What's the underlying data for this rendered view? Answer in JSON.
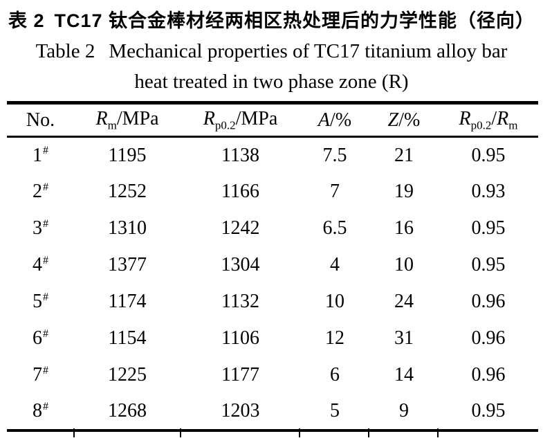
{
  "page": {
    "title_zh": {
      "label": "表 2",
      "text": "TC17 钛合金棒材经两相区热处理后的力学性能（径向）"
    },
    "title_en": {
      "label": "Table 2",
      "line1": "Mechanical properties of TC17 titanium alloy bar",
      "line2": "heat treated in two phase zone (R)"
    }
  },
  "table": {
    "headers": {
      "no": "No.",
      "rm": {
        "sym": "R",
        "sub": "m",
        "rest": "/MPa"
      },
      "rp02": {
        "sym": "R",
        "sub": "p0.2",
        "rest": "/MPa"
      },
      "a": {
        "sym": "A",
        "rest": "/%"
      },
      "z": {
        "sym": "Z",
        "rest": "/%"
      },
      "ratio": {
        "sym1": "R",
        "sub1": "p0.2",
        "slash": "/",
        "sym2": "R",
        "sub2": "m"
      }
    },
    "rows": [
      {
        "no": "1",
        "mark": "#",
        "rm": "1195",
        "rp02": "1138",
        "a": "7.5",
        "z": "21",
        "ratio": "0.95"
      },
      {
        "no": "2",
        "mark": "#",
        "rm": "1252",
        "rp02": "1166",
        "a": "7",
        "z": "19",
        "ratio": "0.93"
      },
      {
        "no": "3",
        "mark": "#",
        "rm": "1310",
        "rp02": "1242",
        "a": "6.5",
        "z": "16",
        "ratio": "0.95"
      },
      {
        "no": "4",
        "mark": "#",
        "rm": "1377",
        "rp02": "1304",
        "a": "4",
        "z": "10",
        "ratio": "0.95"
      },
      {
        "no": "5",
        "mark": "#",
        "rm": "1174",
        "rp02": "1132",
        "a": "10",
        "z": "24",
        "ratio": "0.96"
      },
      {
        "no": "6",
        "mark": "#",
        "rm": "1154",
        "rp02": "1106",
        "a": "12",
        "z": "31",
        "ratio": "0.96"
      },
      {
        "no": "7",
        "mark": "#",
        "rm": "1225",
        "rp02": "1177",
        "a": "6",
        "z": "14",
        "ratio": "0.96"
      },
      {
        "no": "8",
        "mark": "#",
        "rm": "1268",
        "rp02": "1203",
        "a": "5",
        "z": "9",
        "ratio": "0.95"
      }
    ]
  },
  "colors": {
    "text": "#000000",
    "background": "#ffffff",
    "rule": "#000000"
  }
}
